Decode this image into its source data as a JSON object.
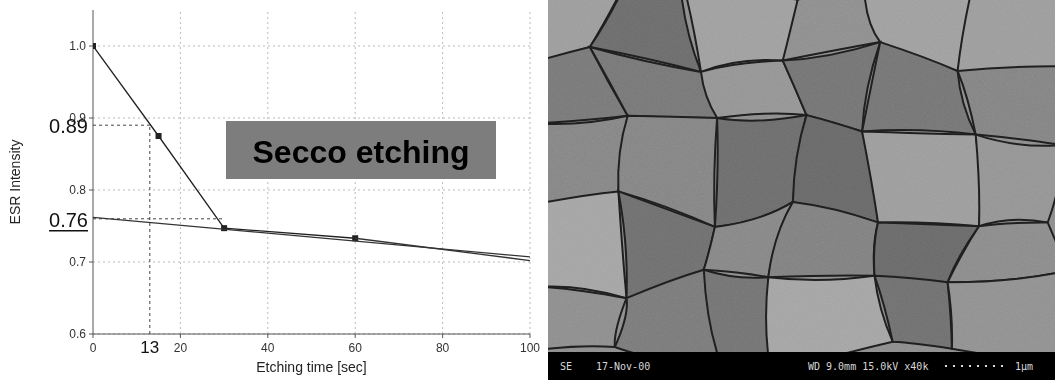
{
  "chart_data": {
    "type": "line",
    "title": "Secco etching",
    "x_label": "Etching time [sec]",
    "y_label": "ESR Intensity",
    "xlim": [
      0,
      100
    ],
    "xticks": [
      0,
      20,
      40,
      60,
      80,
      100
    ],
    "ylim": [
      0.6,
      1.05
    ],
    "yticks": [
      {
        "value": 0.6,
        "label": "0.6"
      },
      {
        "value": 0.7,
        "label": "0.7"
      },
      {
        "value": 0.8,
        "label": "0.8"
      },
      {
        "value": 0.9,
        "label": "0.9"
      },
      {
        "value": 1.0,
        "label": "1.0"
      }
    ],
    "grid": true,
    "series": [
      {
        "x": [
          0,
          15,
          30,
          60
        ],
        "values": [
          1.0,
          0.875,
          0.747,
          0.733
        ],
        "color": "#222222",
        "marker": "square"
      },
      {
        "x": [
          0,
          100
        ],
        "values": [
          0.762,
          0.707
        ],
        "color": "#333333",
        "marker": "none"
      },
      {
        "x": [
          60,
          100
        ],
        "values": [
          0.733,
          0.702
        ],
        "color": "#333333",
        "marker": "none"
      }
    ],
    "annotations": [
      {
        "label": "0.89",
        "value": 0.89,
        "x": 13,
        "axis": "y"
      },
      {
        "label": "0.76",
        "value": 0.76,
        "x": 30,
        "axis": "y"
      },
      {
        "label": "13",
        "value": 13,
        "y": 0.89,
        "axis": "x"
      }
    ]
  },
  "image": {
    "info_bar": [
      "SE",
      "17-Nov-00",
      "WD 9.0mm 15.0kV x40k",
      "1μm"
    ]
  }
}
